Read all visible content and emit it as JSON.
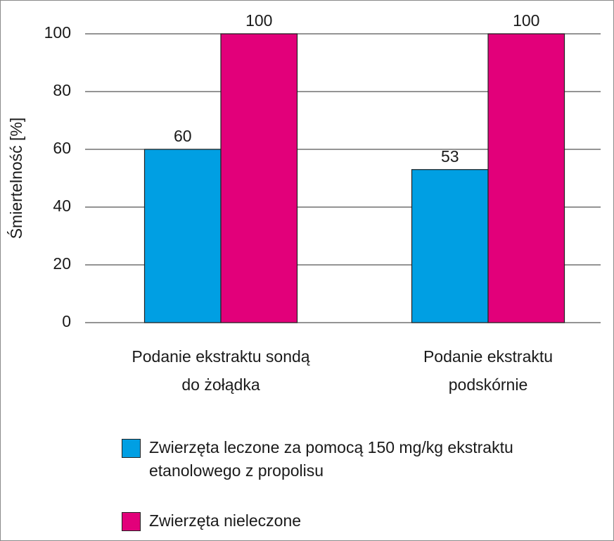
{
  "chart_data": {
    "type": "bar",
    "ylabel": "Śmiertelność [%]",
    "categories": [
      "Podanie ekstraktu sondą do żołądka",
      "Podanie ekstraktu podskórnie"
    ],
    "series": [
      {
        "name": "Zwierzęta leczone za pomocą 150 mg/kg ekstraktu etanolowego z propolisu",
        "color": "#009fe3",
        "values": [
          60,
          53
        ]
      },
      {
        "name": "Zwierzęta nieleczone",
        "color": "#e2007a",
        "values": [
          100,
          100
        ]
      }
    ],
    "ylim": [
      0,
      100
    ],
    "yticks": [
      0,
      20,
      40,
      60,
      80,
      100
    ],
    "grid": true,
    "legend": "bottom"
  }
}
